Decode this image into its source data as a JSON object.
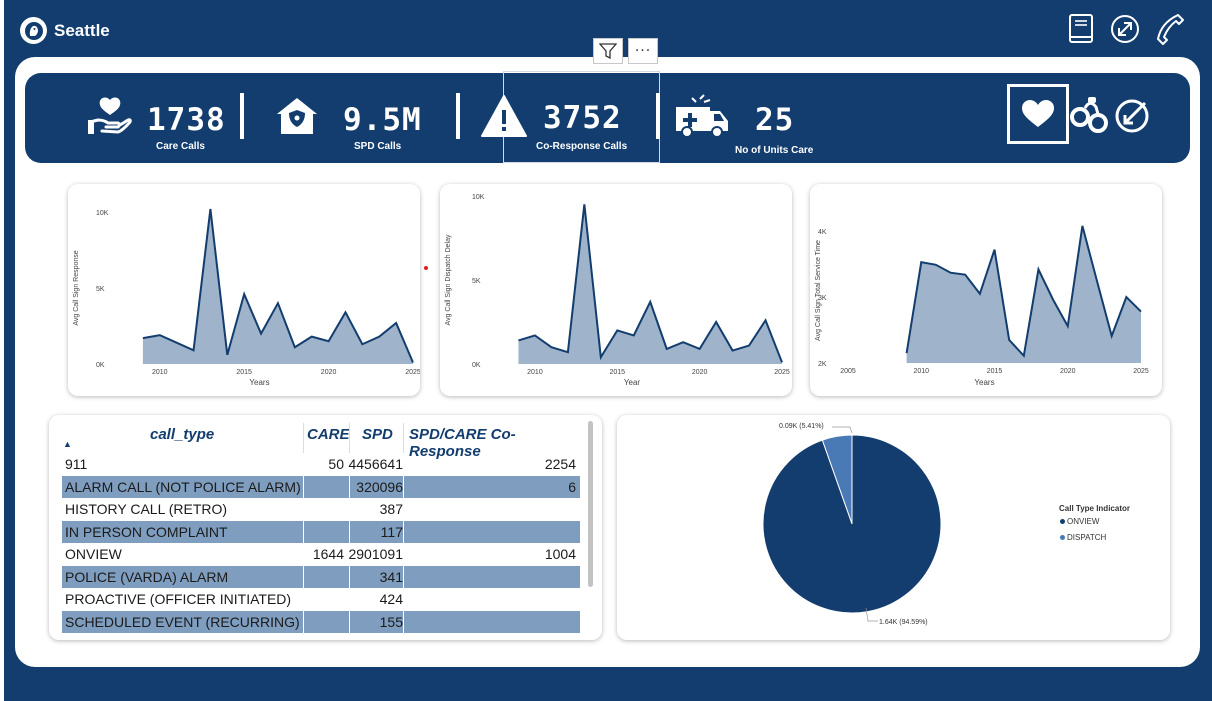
{
  "app": {
    "title": "Seattle"
  },
  "header_icons": [
    "book-icon",
    "expand-arrow-icon",
    "phone-icon"
  ],
  "toolbar": {
    "more_label": "···"
  },
  "kpis": [
    {
      "value": "1738",
      "label": "Care Calls",
      "icon": "caring-hand-heart-icon"
    },
    {
      "value": "9.5M",
      "label": "SPD Calls",
      "icon": "police-house-icon"
    },
    {
      "value": "3752",
      "label": "Co-Response Calls",
      "icon": "warning-icon"
    },
    {
      "value": "25",
      "label": "No of Units Care",
      "icon": "ambulance-icon"
    }
  ],
  "page_nav_icons": [
    "heart-icon",
    "handcuffs-icon",
    "collapse-arrow-icon"
  ],
  "colors": {
    "navy": "#123d6e",
    "area_fill": "#9fb3cb",
    "row_alt": "#7f9dbf",
    "dispatch": "#4a7ab5"
  },
  "chart_data": [
    {
      "type": "area",
      "title": "",
      "xlabel": "Years",
      "ylabel": "Avg Call Sign Response",
      "x": [
        2009,
        2010,
        2011,
        2012,
        2013,
        2014,
        2015,
        2016,
        2017,
        2018,
        2019,
        2020,
        2021,
        2022,
        2023,
        2024,
        2025
      ],
      "values": [
        1700,
        1900,
        1400,
        900,
        10200,
        600,
        4600,
        2000,
        4000,
        1100,
        1800,
        1500,
        3400,
        1300,
        1800,
        2700,
        100
      ],
      "xlim": [
        2008,
        2025
      ],
      "ylim": [
        0,
        10000
      ],
      "xticks": [
        {
          "v": 2010,
          "label": "2010"
        },
        {
          "v": 2015,
          "label": "2015"
        },
        {
          "v": 2020,
          "label": "2020"
        },
        {
          "v": 2025,
          "label": "2025"
        }
      ],
      "yticks": [
        {
          "v": 0,
          "label": "0K"
        },
        {
          "v": 5000,
          "label": "5K"
        },
        {
          "v": 10000,
          "label": "10K"
        }
      ]
    },
    {
      "type": "area",
      "title": "",
      "xlabel": "Year",
      "ylabel": "Avg Call Sign Dispatch Delay",
      "x": [
        2009,
        2010,
        2011,
        2012,
        2013,
        2014,
        2015,
        2016,
        2017,
        2018,
        2019,
        2020,
        2021,
        2022,
        2023,
        2024,
        2025
      ],
      "values": [
        1400,
        1700,
        1000,
        700,
        9500,
        400,
        2000,
        1700,
        3700,
        900,
        1300,
        900,
        2500,
        800,
        1100,
        2600,
        100
      ],
      "xlim": [
        2008,
        2025
      ],
      "ylim": [
        0,
        10000
      ],
      "xticks": [
        {
          "v": 2010,
          "label": "2010"
        },
        {
          "v": 2015,
          "label": "2015"
        },
        {
          "v": 2020,
          "label": "2020"
        },
        {
          "v": 2025,
          "label": "2025"
        }
      ],
      "yticks": [
        {
          "v": 0,
          "label": "0K"
        },
        {
          "v": 5000,
          "label": "5K"
        },
        {
          "v": 10000,
          "label": "10K"
        }
      ]
    },
    {
      "type": "area",
      "title": "",
      "xlabel": "Years",
      "ylabel": "Avg Call Sign Total Service Time",
      "x": [
        2009,
        2010,
        2011,
        2012,
        2013,
        2014,
        2015,
        2016,
        2017,
        2018,
        2019,
        2020,
        2021,
        2022,
        2023,
        2024,
        2025
      ],
      "values": [
        2150,
        3530,
        3490,
        3370,
        3340,
        3050,
        3720,
        2350,
        2110,
        3420,
        2960,
        2560,
        4080,
        3240,
        2410,
        3000,
        2780
      ],
      "xlim": [
        2005,
        2025
      ],
      "ylim": [
        2000,
        4200
      ],
      "xticks": [
        {
          "v": 2005,
          "label": "2005"
        },
        {
          "v": 2010,
          "label": "2010"
        },
        {
          "v": 2015,
          "label": "2015"
        },
        {
          "v": 2020,
          "label": "2020"
        },
        {
          "v": 2025,
          "label": "2025"
        }
      ],
      "yticks": [
        {
          "v": 2000,
          "label": "2K"
        },
        {
          "v": 3000,
          "label": "3K"
        },
        {
          "v": 4000,
          "label": "4K"
        }
      ]
    },
    {
      "type": "pie",
      "title": "",
      "legend_title": "Call Type Indicator",
      "slices": [
        {
          "name": "ONVIEW",
          "value": 1640,
          "label": "1.64K (94.59%)",
          "color": "#123d6e"
        },
        {
          "name": "DISPATCH",
          "value": 94,
          "label": "0.09K (5.41%)",
          "color": "#4a7ab5"
        }
      ]
    }
  ],
  "table": {
    "headers": [
      "call_type",
      "CARE",
      "SPD",
      "SPD/CARE Co-Response"
    ],
    "sort_indicator": "▲",
    "rows": [
      [
        "911",
        "50",
        "4456641",
        "2254"
      ],
      [
        "ALARM CALL (NOT POLICE ALARM)",
        "",
        "320096",
        "6"
      ],
      [
        "HISTORY CALL (RETRO)",
        "",
        "387",
        ""
      ],
      [
        "IN PERSON COMPLAINT",
        "",
        "117",
        ""
      ],
      [
        "ONVIEW",
        "1644",
        "2901091",
        "1004"
      ],
      [
        "POLICE (VARDA) ALARM",
        "",
        "341",
        ""
      ],
      [
        "PROACTIVE (OFFICER INITIATED)",
        "",
        "424",
        ""
      ],
      [
        "SCHEDULED EVENT (RECURRING)",
        "",
        "155",
        ""
      ]
    ]
  }
}
